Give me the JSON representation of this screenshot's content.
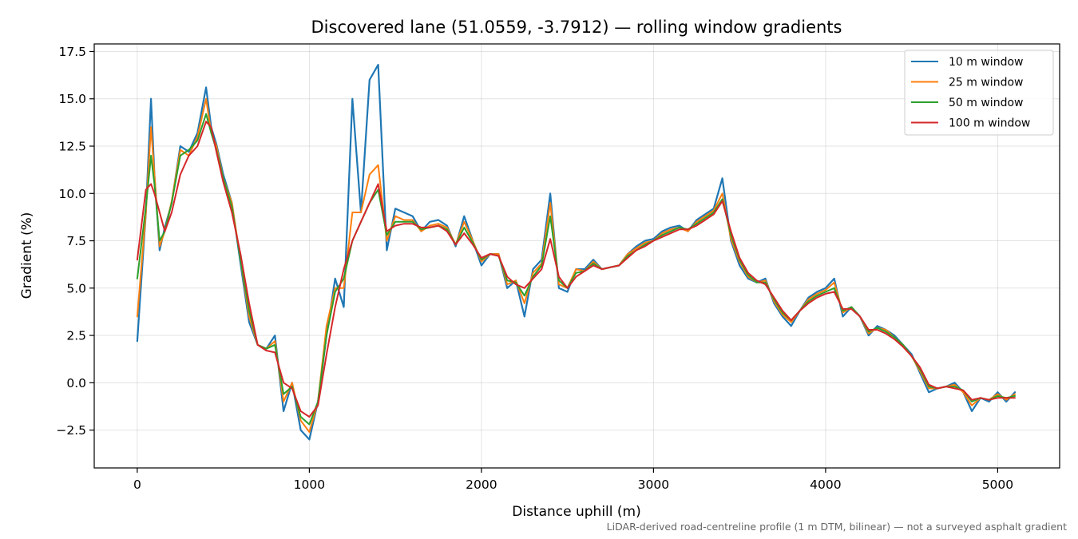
{
  "chart_data": {
    "type": "line",
    "title": "Discovered lane (51.0559, -3.7912) — rolling window gradients",
    "xlabel": "Distance uphill (m)",
    "ylabel": "Gradient (%)",
    "xlim": [
      -250,
      5360
    ],
    "ylim": [
      -4.5,
      17.9
    ],
    "x_ticks": [
      0,
      1000,
      2000,
      3000,
      4000,
      5000
    ],
    "x_tick_labels": [
      "0",
      "1000",
      "2000",
      "3000",
      "4000",
      "5000"
    ],
    "y_ticks": [
      -2.5,
      0.0,
      2.5,
      5.0,
      7.5,
      10.0,
      12.5,
      15.0,
      17.5
    ],
    "y_tick_labels": [
      "−2.5",
      "0.0",
      "2.5",
      "5.0",
      "7.5",
      "10.0",
      "12.5",
      "15.0",
      "17.5"
    ],
    "grid": true,
    "legend_position": "top-right",
    "footnote": "LiDAR-derived road-centreline profile (1 m DTM, bilinear) — not a surveyed asphalt gradient",
    "x": [
      0,
      50,
      80,
      100,
      130,
      160,
      200,
      250,
      300,
      350,
      400,
      430,
      460,
      500,
      550,
      600,
      650,
      700,
      750,
      800,
      850,
      900,
      950,
      1000,
      1050,
      1100,
      1150,
      1200,
      1250,
      1300,
      1350,
      1400,
      1450,
      1500,
      1550,
      1600,
      1650,
      1700,
      1750,
      1800,
      1850,
      1900,
      1950,
      2000,
      2050,
      2100,
      2150,
      2200,
      2250,
      2300,
      2350,
      2400,
      2450,
      2500,
      2550,
      2600,
      2650,
      2700,
      2750,
      2800,
      2850,
      2900,
      2950,
      3000,
      3050,
      3100,
      3150,
      3200,
      3250,
      3300,
      3350,
      3400,
      3450,
      3500,
      3550,
      3600,
      3650,
      3700,
      3750,
      3800,
      3850,
      3900,
      3950,
      4000,
      4050,
      4100,
      4150,
      4200,
      4250,
      4300,
      4350,
      4400,
      4450,
      4500,
      4550,
      4600,
      4650,
      4700,
      4750,
      4800,
      4850,
      4900,
      4950,
      5000,
      5050,
      5100
    ],
    "series": [
      {
        "name": "10 m window",
        "color": "#1f77b4",
        "values": [
          2.2,
          9.0,
          15.0,
          11.0,
          7.0,
          8.2,
          9.5,
          12.5,
          12.2,
          13.2,
          15.6,
          13.5,
          12.6,
          11.0,
          9.5,
          6.3,
          3.2,
          2.0,
          1.8,
          2.5,
          -1.5,
          0.0,
          -2.5,
          -3.0,
          -1.0,
          2.5,
          5.5,
          4.0,
          15.0,
          9.0,
          16.0,
          16.8,
          7.0,
          9.2,
          9.0,
          8.8,
          8.0,
          8.5,
          8.6,
          8.3,
          7.2,
          8.8,
          7.5,
          6.2,
          6.8,
          6.8,
          5.0,
          5.4,
          3.5,
          6.0,
          6.5,
          10.0,
          5.0,
          4.8,
          6.0,
          6.0,
          6.5,
          6.0,
          6.1,
          6.2,
          6.8,
          7.2,
          7.5,
          7.6,
          8.0,
          8.2,
          8.3,
          8.0,
          8.6,
          8.9,
          9.2,
          10.8,
          7.5,
          6.2,
          5.5,
          5.3,
          5.5,
          4.2,
          3.5,
          3.0,
          3.8,
          4.5,
          4.8,
          5.0,
          5.5,
          3.5,
          4.0,
          3.5,
          2.5,
          3.0,
          2.8,
          2.5,
          2.0,
          1.5,
          0.5,
          -0.5,
          -0.3,
          -0.2,
          0.0,
          -0.5,
          -1.5,
          -0.8,
          -1.0,
          -0.5,
          -1.0,
          -0.5
        ]
      },
      {
        "name": "25 m window",
        "color": "#ff7f0e",
        "values": [
          3.5,
          9.0,
          13.5,
          11.0,
          7.2,
          8.0,
          9.6,
          12.3,
          12.0,
          13.0,
          15.0,
          13.2,
          12.5,
          10.8,
          9.5,
          6.5,
          3.5,
          2.0,
          1.8,
          2.2,
          -1.0,
          0.0,
          -2.0,
          -2.6,
          -1.0,
          3.0,
          5.0,
          5.0,
          9.0,
          9.0,
          11.0,
          11.5,
          7.5,
          8.8,
          8.6,
          8.6,
          8.0,
          8.3,
          8.4,
          8.2,
          7.3,
          8.5,
          7.5,
          6.4,
          6.8,
          6.8,
          5.2,
          5.4,
          4.2,
          5.8,
          6.3,
          9.5,
          5.2,
          5.0,
          6.0,
          5.9,
          6.4,
          6.0,
          6.1,
          6.2,
          6.8,
          7.1,
          7.4,
          7.5,
          7.9,
          8.1,
          8.2,
          8.0,
          8.5,
          8.8,
          9.1,
          10.0,
          7.6,
          6.4,
          5.6,
          5.3,
          5.4,
          4.3,
          3.6,
          3.2,
          3.8,
          4.4,
          4.7,
          4.9,
          5.3,
          3.7,
          4.0,
          3.5,
          2.6,
          2.9,
          2.8,
          2.4,
          2.0,
          1.4,
          0.6,
          -0.3,
          -0.3,
          -0.2,
          -0.1,
          -0.5,
          -1.2,
          -0.8,
          -0.9,
          -0.6,
          -0.9,
          -0.6
        ]
      },
      {
        "name": "50 m window",
        "color": "#2ca02c",
        "values": [
          5.5,
          9.3,
          12.0,
          10.5,
          7.5,
          8.0,
          9.5,
          12.0,
          12.3,
          12.8,
          14.2,
          13.2,
          12.3,
          10.8,
          9.3,
          6.5,
          3.8,
          2.0,
          1.8,
          2.0,
          -0.6,
          -0.2,
          -1.8,
          -2.2,
          -1.0,
          2.5,
          4.8,
          5.5,
          7.5,
          8.5,
          9.5,
          10.2,
          7.8,
          8.5,
          8.5,
          8.5,
          8.1,
          8.2,
          8.3,
          8.1,
          7.3,
          8.2,
          7.4,
          6.5,
          6.8,
          6.7,
          5.4,
          5.3,
          4.6,
          5.6,
          6.2,
          8.8,
          5.4,
          5.0,
          5.8,
          5.9,
          6.3,
          6.0,
          6.1,
          6.2,
          6.7,
          7.0,
          7.3,
          7.5,
          7.8,
          8.0,
          8.2,
          8.1,
          8.4,
          8.7,
          9.0,
          9.7,
          7.8,
          6.5,
          5.7,
          5.3,
          5.3,
          4.4,
          3.7,
          3.3,
          3.8,
          4.3,
          4.6,
          4.8,
          5.0,
          3.8,
          4.0,
          3.5,
          2.7,
          2.9,
          2.7,
          2.4,
          2.0,
          1.4,
          0.7,
          -0.2,
          -0.3,
          -0.2,
          -0.2,
          -0.4,
          -1.0,
          -0.8,
          -0.9,
          -0.7,
          -0.8,
          -0.7
        ]
      },
      {
        "name": "100 m window",
        "color": "#d62728",
        "values": [
          6.5,
          10.2,
          10.5,
          10.0,
          9.0,
          8.0,
          9.0,
          11.0,
          12.0,
          12.5,
          13.8,
          13.5,
          12.2,
          10.6,
          9.0,
          6.8,
          4.2,
          2.0,
          1.7,
          1.6,
          0.0,
          -0.3,
          -1.5,
          -1.8,
          -1.2,
          1.5,
          4.0,
          6.0,
          7.5,
          8.5,
          9.5,
          10.5,
          8.0,
          8.3,
          8.4,
          8.4,
          8.2,
          8.2,
          8.3,
          8.0,
          7.3,
          7.9,
          7.3,
          6.6,
          6.8,
          6.7,
          5.6,
          5.2,
          5.0,
          5.5,
          6.0,
          7.6,
          5.6,
          5.0,
          5.6,
          5.9,
          6.2,
          6.0,
          6.1,
          6.2,
          6.6,
          7.0,
          7.2,
          7.5,
          7.7,
          7.9,
          8.1,
          8.1,
          8.3,
          8.6,
          8.9,
          9.6,
          8.0,
          6.6,
          5.8,
          5.4,
          5.2,
          4.5,
          3.8,
          3.3,
          3.8,
          4.2,
          4.5,
          4.7,
          4.8,
          3.9,
          3.9,
          3.5,
          2.8,
          2.8,
          2.6,
          2.3,
          1.9,
          1.4,
          0.8,
          -0.1,
          -0.3,
          -0.2,
          -0.3,
          -0.4,
          -0.9,
          -0.8,
          -0.9,
          -0.8,
          -0.8,
          -0.8
        ]
      }
    ]
  }
}
